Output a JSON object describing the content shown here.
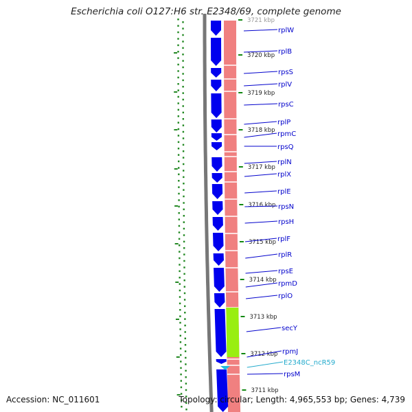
{
  "title": "Escherichia coli O127:H6 str. E2348/69, complete genome",
  "footer": {
    "accession": "Accession: NC_011601",
    "topology": "Topology: circular; Length: 4,965,553 bp; Genes: 4,739"
  },
  "colors": {
    "cds_arrow": "#0000ee",
    "rrna_track": "#f08080",
    "secY_highlight": "#99ee11",
    "ncrna": "#22bbdd",
    "gene_label": "#0000cc",
    "ncrna_label": "#22aacc",
    "dotted_ring": "#228822",
    "outer_ring": "#777777"
  },
  "scale_labels": [
    {
      "text": "3721 kbp",
      "pos_kbp": 3721
    },
    {
      "text": "3720 kbp",
      "pos_kbp": 3720
    },
    {
      "text": "3719 kbp",
      "pos_kbp": 3719
    },
    {
      "text": "3718 kbp",
      "pos_kbp": 3718
    },
    {
      "text": "3717 kbp",
      "pos_kbp": 3717
    },
    {
      "text": "3716 kbp",
      "pos_kbp": 3716
    },
    {
      "text": "3715 kbp",
      "pos_kbp": 3715
    },
    {
      "text": "3714 kbp",
      "pos_kbp": 3714
    },
    {
      "text": "3713 kbp",
      "pos_kbp": 3713
    },
    {
      "text": "3712 kbp",
      "pos_kbp": 3712
    },
    {
      "text": "3711 kbp",
      "pos_kbp": 3711
    }
  ],
  "genes": [
    {
      "name": "rplW",
      "type": "CDS"
    },
    {
      "name": "rplB",
      "type": "CDS"
    },
    {
      "name": "rpsS",
      "type": "CDS"
    },
    {
      "name": "rplV",
      "type": "CDS"
    },
    {
      "name": "rpsC",
      "type": "CDS"
    },
    {
      "name": "rplP",
      "type": "CDS"
    },
    {
      "name": "rpmC",
      "type": "CDS"
    },
    {
      "name": "rpsQ",
      "type": "CDS"
    },
    {
      "name": "rplN",
      "type": "CDS"
    },
    {
      "name": "rplX",
      "type": "CDS"
    },
    {
      "name": "rplE",
      "type": "CDS"
    },
    {
      "name": "rpsN",
      "type": "CDS"
    },
    {
      "name": "rpsH",
      "type": "CDS"
    },
    {
      "name": "rplF",
      "type": "CDS"
    },
    {
      "name": "rplR",
      "type": "CDS"
    },
    {
      "name": "rpsE",
      "type": "CDS"
    },
    {
      "name": "rpmD",
      "type": "CDS"
    },
    {
      "name": "rplO",
      "type": "CDS"
    },
    {
      "name": "secY",
      "type": "CDS"
    },
    {
      "name": "rpmJ",
      "type": "CDS"
    },
    {
      "name": "E2348C_ncR59",
      "type": "ncRNA"
    },
    {
      "name": "rpsM",
      "type": "CDS"
    }
  ]
}
